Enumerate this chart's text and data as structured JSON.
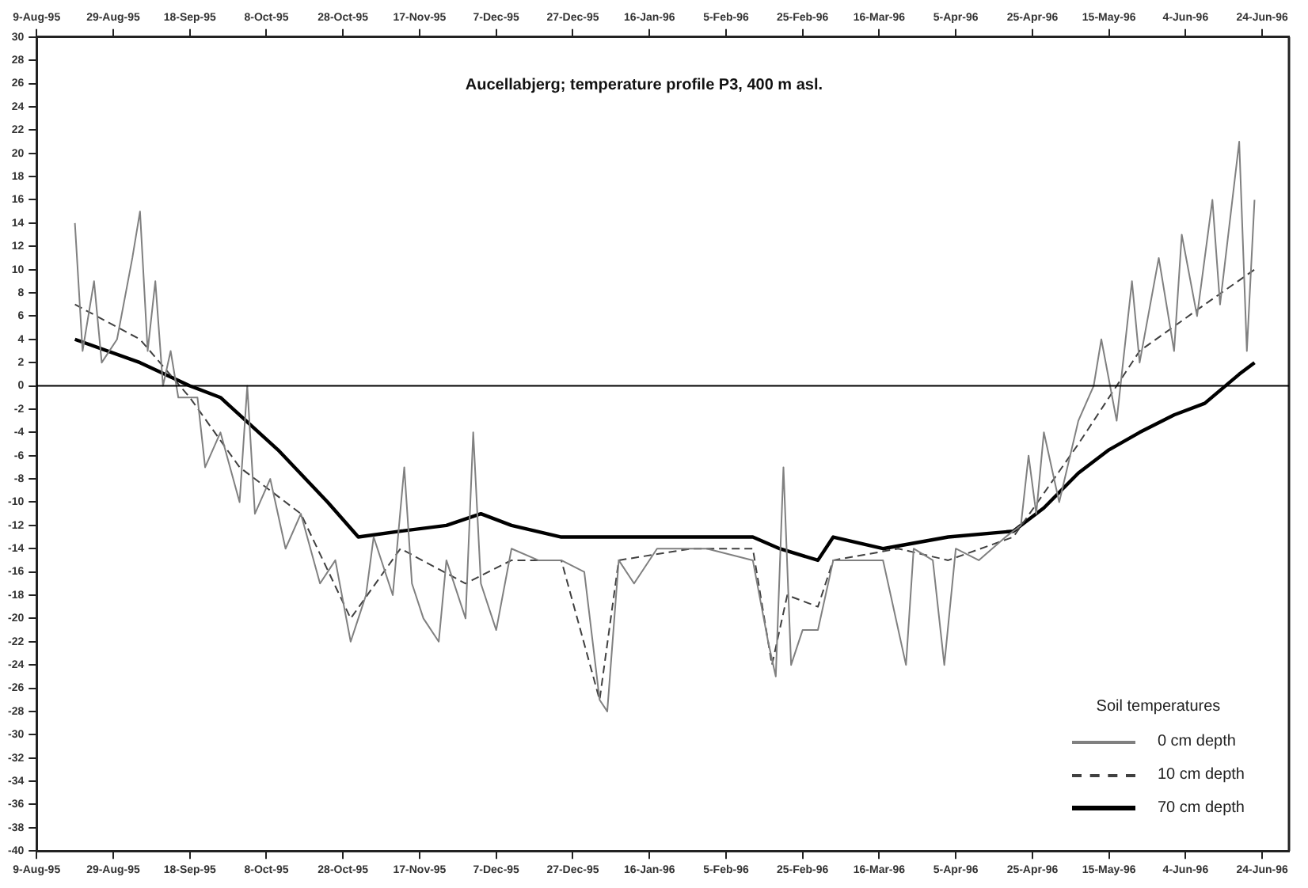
{
  "chart_data": {
    "type": "line",
    "title": "Aucellabjerg; temperature profile P3, 400 m asl.",
    "legend_title": "Soil temperatures",
    "legend": "bottom right",
    "grid": false,
    "marker": "none",
    "xlim": [
      "1995-08-09",
      "1996-07-01"
    ],
    "ylim": [
      -40,
      30
    ],
    "xticks": [
      {
        "value": "1995-08-09",
        "label": "9-Aug-95"
      },
      {
        "value": "1995-08-29",
        "label": "29-Aug-95"
      },
      {
        "value": "1995-09-18",
        "label": "18-Sep-95"
      },
      {
        "value": "1995-10-08",
        "label": "8-Oct-95"
      },
      {
        "value": "1995-10-28",
        "label": "28-Oct-95"
      },
      {
        "value": "1995-11-17",
        "label": "17-Nov-95"
      },
      {
        "value": "1995-12-07",
        "label": "7-Dec-95"
      },
      {
        "value": "1995-12-27",
        "label": "27-Dec-95"
      },
      {
        "value": "1996-01-16",
        "label": "16-Jan-96"
      },
      {
        "value": "1996-02-05",
        "label": "5-Feb-96"
      },
      {
        "value": "1996-02-25",
        "label": "25-Feb-96"
      },
      {
        "value": "1996-03-16",
        "label": "16-Mar-96"
      },
      {
        "value": "1996-04-05",
        "label": "5-Apr-96"
      },
      {
        "value": "1996-04-25",
        "label": "25-Apr-96"
      },
      {
        "value": "1996-05-15",
        "label": "15-May-96"
      },
      {
        "value": "1996-06-04",
        "label": "4-Jun-96"
      },
      {
        "value": "1996-06-24",
        "label": "24-Jun-96"
      }
    ],
    "x2lim": [
      "1995-08-09",
      "1996-07-01"
    ],
    "x2ticks": [
      {
        "value": "1995-08-09",
        "label": "9-Aug-95"
      },
      {
        "value": "1995-08-29",
        "label": "29-Aug-95"
      },
      {
        "value": "1995-09-18",
        "label": "18-Sep-95"
      },
      {
        "value": "1995-10-08",
        "label": "8-Oct-95"
      },
      {
        "value": "1995-10-28",
        "label": "28-Oct-95"
      },
      {
        "value": "1995-11-17",
        "label": "17-Nov-95"
      },
      {
        "value": "1995-12-07",
        "label": "7-Dec-95"
      },
      {
        "value": "1995-12-27",
        "label": "27-Dec-95"
      },
      {
        "value": "1996-01-16",
        "label": "16-Jan-96"
      },
      {
        "value": "1996-02-05",
        "label": "5-Feb-96"
      },
      {
        "value": "1996-02-25",
        "label": "25-Feb-96"
      },
      {
        "value": "1996-03-16",
        "label": "16-Mar-96"
      },
      {
        "value": "1996-04-05",
        "label": "5-Apr-96"
      },
      {
        "value": "1996-04-25",
        "label": "25-Apr-96"
      },
      {
        "value": "1996-05-15",
        "label": "15-May-96"
      },
      {
        "value": "1996-06-04",
        "label": "4-Jun-96"
      },
      {
        "value": "1996-06-24",
        "label": "24-Jun-96"
      }
    ],
    "yticks": [
      -40,
      -38,
      -36,
      -34,
      -32,
      -30,
      -28,
      -26,
      -24,
      -22,
      -20,
      -18,
      -16,
      -14,
      -12,
      -10,
      -8,
      -6,
      -4,
      -2,
      0,
      2,
      4,
      6,
      8,
      10,
      12,
      14,
      16,
      18,
      20,
      22,
      24,
      26,
      28,
      30
    ],
    "ref_lines": [
      {
        "axis": "y",
        "value": 0,
        "color": "#000000"
      }
    ],
    "series": [
      {
        "name": "0 cm depth",
        "color": "#808080",
        "line_style": "solid",
        "x": [
          "1995-08-19",
          "1995-08-21",
          "1995-08-24",
          "1995-08-26",
          "1995-08-30",
          "1995-09-03",
          "1995-09-05",
          "1995-09-07",
          "1995-09-09",
          "1995-09-11",
          "1995-09-13",
          "1995-09-15",
          "1995-09-20",
          "1995-09-22",
          "1995-09-26",
          "1995-10-01",
          "1995-10-03",
          "1995-10-05",
          "1995-10-09",
          "1995-10-13",
          "1995-10-17",
          "1995-10-22",
          "1995-10-26",
          "1995-10-30",
          "1995-11-01",
          "1995-11-03",
          "1995-11-05",
          "1995-11-10",
          "1995-11-13",
          "1995-11-15",
          "1995-11-18",
          "1995-11-22",
          "1995-11-24",
          "1995-11-29",
          "1995-12-01",
          "1995-12-03",
          "1995-12-07",
          "1995-12-11",
          "1995-12-18",
          "1995-12-24",
          "1995-12-30",
          "1996-01-03",
          "1996-01-05",
          "1996-01-08",
          "1996-01-12",
          "1996-01-18",
          "1996-01-31",
          "1996-02-12",
          "1996-02-16",
          "1996-02-18",
          "1996-02-20",
          "1996-02-22",
          "1996-02-25",
          "1996-02-29",
          "1996-03-04",
          "1996-03-11",
          "1996-03-17",
          "1996-03-23",
          "1996-03-25",
          "1996-03-30",
          "1996-04-02",
          "1996-04-05",
          "1996-04-11",
          "1996-04-18",
          "1996-04-22",
          "1996-04-24",
          "1996-04-26",
          "1996-04-28",
          "1996-05-02",
          "1996-05-07",
          "1996-05-11",
          "1996-05-13",
          "1996-05-17",
          "1996-05-21",
          "1996-05-23",
          "1996-05-28",
          "1996-06-01",
          "1996-06-03",
          "1996-06-07",
          "1996-06-11",
          "1996-06-13",
          "1996-06-18",
          "1996-06-20",
          "1996-06-22"
        ],
        "values": [
          14,
          3,
          9,
          2,
          4,
          11,
          15,
          3,
          9,
          0,
          3,
          -1,
          -1,
          -7,
          -4,
          -10,
          0,
          -11,
          -8,
          -14,
          -11,
          -17,
          -15,
          -22,
          -20,
          -18,
          -13,
          -18,
          -7,
          -17,
          -20,
          -22,
          -15,
          -20,
          -4,
          -17,
          -21,
          -14,
          -15,
          -15,
          -16,
          -27,
          -28,
          -15,
          -17,
          -14,
          -14,
          -15,
          -22,
          -25,
          -7,
          -24,
          -21,
          -21,
          -15,
          -15,
          -15,
          -24,
          -14,
          -15,
          -24,
          -14,
          -15,
          -13,
          -12,
          -6,
          -11,
          -4,
          -10,
          -3,
          0,
          4,
          -3,
          9,
          2,
          11,
          3,
          13,
          6,
          16,
          7,
          21,
          3,
          16
        ]
      },
      {
        "name": "10 cm depth",
        "color": "#404040",
        "line_style": "dashed",
        "x": [
          "1995-08-19",
          "1995-09-05",
          "1995-09-18",
          "1995-10-01",
          "1995-10-17",
          "1995-10-30",
          "1995-11-12",
          "1995-11-29",
          "1995-12-11",
          "1995-12-24",
          "1996-01-03",
          "1996-01-08",
          "1996-01-27",
          "1996-02-12",
          "1996-02-17",
          "1996-02-21",
          "1996-02-29",
          "1996-03-04",
          "1996-03-21",
          "1996-04-03",
          "1996-04-20",
          "1996-05-07",
          "1996-05-23",
          "1996-06-09",
          "1996-06-22"
        ],
        "values": [
          7,
          4,
          -1,
          -7,
          -11,
          -20,
          -14,
          -17,
          -15,
          -15,
          -27,
          -15,
          -14,
          -14,
          -24,
          -18,
          -19,
          -15,
          -14,
          -15,
          -13,
          -5,
          3,
          7,
          10
        ]
      },
      {
        "name": "70 cm depth",
        "color": "#000000",
        "line_style": "solid",
        "x": [
          "1995-08-19",
          "1995-09-05",
          "1995-09-18",
          "1995-09-26",
          "1995-10-11",
          "1995-10-24",
          "1995-11-01",
          "1995-11-12",
          "1995-11-24",
          "1995-12-03",
          "1995-12-11",
          "1995-12-24",
          "1996-01-10",
          "1996-01-27",
          "1996-02-12",
          "1996-02-19",
          "1996-02-29",
          "1996-03-04",
          "1996-03-17",
          "1996-04-03",
          "1996-04-20",
          "1996-04-28",
          "1996-05-07",
          "1996-05-15",
          "1996-05-23",
          "1996-06-01",
          "1996-06-09",
          "1996-06-18",
          "1996-06-22"
        ],
        "values": [
          4,
          2,
          0,
          -1,
          -5.5,
          -10,
          -13,
          -12.5,
          -12,
          -11,
          -12,
          -13,
          -13,
          -13,
          -13,
          -14,
          -15,
          -13,
          -14,
          -13,
          -12.5,
          -10.5,
          -7.5,
          -5.5,
          -4,
          -2.5,
          -1.5,
          1,
          2
        ]
      }
    ]
  }
}
